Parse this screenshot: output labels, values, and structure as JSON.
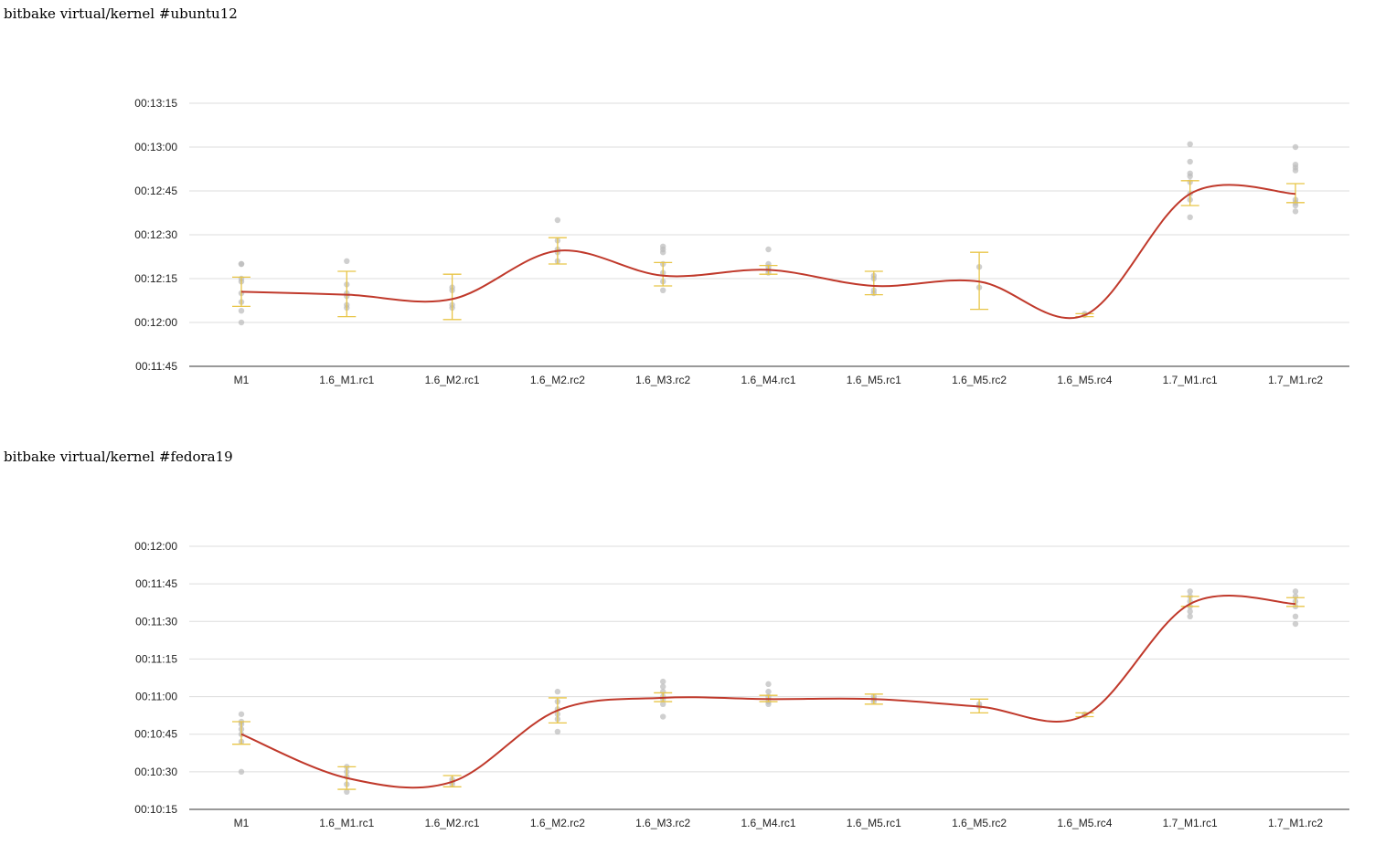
{
  "chart_data": [
    {
      "type": "line",
      "title": "bitbake virtual/kernel #ubuntu12",
      "categories": [
        "M1",
        "1.6_M1.rc1",
        "1.6_M2.rc1",
        "1.6_M2.rc2",
        "1.6_M3.rc2",
        "1.6_M4.rc1",
        "1.6_M5.rc1",
        "1.6_M5.rc2",
        "1.6_M5.rc4",
        "1.7_M1.rc1",
        "1.7_M1.rc2"
      ],
      "yticks": [
        "00:11:45",
        "00:12:00",
        "00:12:15",
        "00:12:30",
        "00:12:45",
        "00:13:00",
        "00:13:15"
      ],
      "ylim_seconds": [
        705,
        795
      ],
      "grid": true,
      "line_color": "#c0392b",
      "errorbar_color": "#e8c547",
      "point_color": "#bbbbbb",
      "series": [
        {
          "mean": [
            730.5,
            729.5,
            728,
            744.5,
            736,
            738,
            732.5,
            734,
            722.5,
            764,
            764
          ],
          "err_low": [
            725.5,
            722,
            721,
            740,
            732.5,
            736.5,
            729.5,
            724.5,
            722,
            760,
            761
          ],
          "err_high": [
            735.5,
            737.5,
            736.5,
            749,
            740.5,
            739.5,
            737.5,
            744,
            723,
            768.5,
            767.5
          ],
          "points": [
            [
              740,
              740,
              735,
              734,
              730,
              727,
              724,
              720
            ],
            [
              741,
              733,
              730,
              729,
              726,
              725
            ],
            [
              732,
              731,
              726,
              725
            ],
            [
              755,
              748,
              745,
              744,
              741
            ],
            [
              746,
              745,
              744,
              740,
              737,
              734,
              731
            ],
            [
              745,
              740,
              739,
              738,
              737
            ],
            [
              736,
              735,
              731,
              730
            ],
            [
              739,
              732
            ],
            [
              723,
              722.5
            ],
            [
              781,
              775,
              771,
              770,
              768,
              764,
              762,
              756
            ],
            [
              780,
              774,
              773,
              772,
              762,
              761,
              760,
              758
            ]
          ]
        }
      ]
    },
    {
      "type": "line",
      "title": "bitbake virtual/kernel #fedora19",
      "categories": [
        "M1",
        "1.6_M1.rc1",
        "1.6_M2.rc1",
        "1.6_M2.rc2",
        "1.6_M3.rc2",
        "1.6_M4.rc1",
        "1.6_M5.rc1",
        "1.6_M5.rc2",
        "1.6_M5.rc4",
        "1.7_M1.rc1",
        "1.7_M1.rc2"
      ],
      "yticks": [
        "00:10:15",
        "00:10:30",
        "00:10:45",
        "00:11:00",
        "00:11:15",
        "00:11:30",
        "00:11:45",
        "00:12:00"
      ],
      "ylim_seconds": [
        615,
        720
      ],
      "grid": true,
      "line_color": "#c0392b",
      "errorbar_color": "#e8c547",
      "point_color": "#bbbbbb",
      "series": [
        {
          "mean": [
            645,
            627.5,
            626,
            654.5,
            659.5,
            659,
            659,
            656,
            652.5,
            697,
            697
          ],
          "err_low": [
            641,
            623,
            624,
            649.5,
            658,
            658,
            657,
            653.5,
            652,
            696,
            696
          ],
          "err_high": [
            650,
            632,
            628.5,
            659.5,
            661.5,
            660.5,
            661,
            659,
            653.5,
            700,
            699.5
          ],
          "points": [
            [
              653,
              650,
              649,
              647,
              645,
              642,
              630
            ],
            [
              632,
              630,
              628,
              625,
              622
            ],
            [
              627,
              626,
              625
            ],
            [
              662,
              658,
              655,
              653,
              651,
              646
            ],
            [
              666,
              664,
              662,
              660,
              659,
              657,
              652
            ],
            [
              665,
              662,
              660,
              658,
              657
            ],
            [
              660,
              659,
              658
            ],
            [
              657,
              656
            ],
            [
              653,
              652.5
            ],
            [
              702,
              700,
              698,
              696,
              694,
              692
            ],
            [
              702,
              700,
              698,
              696,
              692,
              689
            ]
          ]
        }
      ]
    }
  ]
}
